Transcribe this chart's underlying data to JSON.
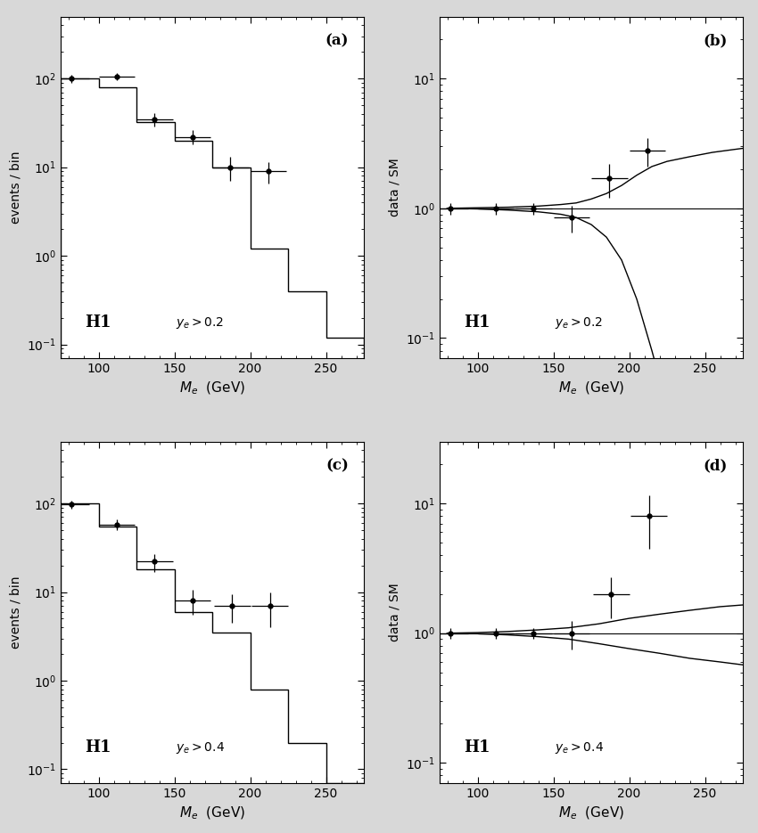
{
  "panel_a": {
    "label": "(a)",
    "condition": "$y_e > 0.2$",
    "hist_edges": [
      75,
      100,
      125,
      150,
      175,
      200,
      225,
      250,
      275
    ],
    "hist_values": [
      100,
      80,
      32,
      20,
      10,
      1.2,
      0.4,
      0.12
    ],
    "data_x": [
      82,
      112,
      137,
      162,
      187,
      212
    ],
    "data_y": [
      100,
      105,
      35,
      22,
      10,
      9
    ],
    "data_xerr": [
      12,
      12,
      12,
      12,
      12,
      12
    ],
    "data_yerr_lo": [
      10,
      10,
      6,
      4,
      3,
      2.5
    ],
    "data_yerr_hi": [
      10,
      10,
      6,
      4,
      3,
      2.5
    ],
    "ylabel": "events / bin",
    "xlabel": "$M_e$  (GeV)",
    "H1_label": "H1",
    "ylim": [
      0.07,
      500
    ],
    "xlim": [
      75,
      275
    ]
  },
  "panel_b": {
    "label": "(b)",
    "condition": "$y_e > 0.2$",
    "data_x": [
      82,
      112,
      137,
      162,
      187,
      212
    ],
    "data_y": [
      1.0,
      1.0,
      1.0,
      0.85,
      1.7,
      2.8
    ],
    "data_xerr": [
      12,
      12,
      12,
      12,
      12,
      12
    ],
    "data_yerr_lo": [
      0.1,
      0.1,
      0.1,
      0.2,
      0.5,
      0.7
    ],
    "data_yerr_hi": [
      0.1,
      0.1,
      0.1,
      0.2,
      0.5,
      0.7
    ],
    "curve_x": [
      80,
      100,
      120,
      140,
      155,
      165,
      175,
      185,
      195,
      205,
      215,
      225,
      240,
      255,
      270,
      275
    ],
    "curve_upper_y": [
      1.0,
      1.01,
      1.02,
      1.04,
      1.07,
      1.1,
      1.18,
      1.3,
      1.5,
      1.8,
      2.1,
      2.3,
      2.5,
      2.7,
      2.85,
      2.9
    ],
    "curve_lower_y": [
      1.0,
      0.99,
      0.97,
      0.94,
      0.9,
      0.85,
      0.75,
      0.6,
      0.4,
      0.2,
      0.08,
      0.03,
      0.006,
      0.001,
      0.0003,
      0.0001
    ],
    "hline_y": 1.0,
    "ylabel": "data / SM",
    "xlabel": "$M_e$  (GeV)",
    "H1_label": "H1",
    "ylim": [
      0.07,
      30
    ],
    "xlim": [
      75,
      275
    ]
  },
  "panel_c": {
    "label": "(c)",
    "condition": "$y_e > 0.4$",
    "hist_edges": [
      75,
      100,
      125,
      150,
      175,
      200,
      225,
      250,
      275
    ],
    "hist_values": [
      100,
      55,
      18,
      6,
      3.5,
      0.8,
      0.2,
      0.07
    ],
    "data_x": [
      82,
      112,
      137,
      162,
      188,
      213
    ],
    "data_y": [
      98,
      58,
      22,
      8,
      7,
      7
    ],
    "data_xerr": [
      12,
      12,
      12,
      12,
      12,
      12
    ],
    "data_yerr_lo": [
      10,
      8,
      5,
      2.5,
      2.5,
      3
    ],
    "data_yerr_hi": [
      10,
      8,
      5,
      2.5,
      2.5,
      3
    ],
    "ylabel": "events / bin",
    "xlabel": "$M_e$  (GeV)",
    "H1_label": "H1",
    "ylim": [
      0.07,
      500
    ],
    "xlim": [
      75,
      275
    ]
  },
  "panel_d": {
    "label": "(d)",
    "condition": "$y_e > 0.4$",
    "data_x": [
      82,
      112,
      137,
      162,
      188,
      213
    ],
    "data_y": [
      1.0,
      1.0,
      1.0,
      1.0,
      2.0,
      8.0
    ],
    "data_xerr": [
      12,
      12,
      12,
      12,
      12,
      12
    ],
    "data_yerr_lo": [
      0.1,
      0.1,
      0.1,
      0.25,
      0.7,
      3.5
    ],
    "data_yerr_hi": [
      0.1,
      0.1,
      0.1,
      0.25,
      0.7,
      3.5
    ],
    "curve_x": [
      80,
      100,
      120,
      140,
      160,
      180,
      200,
      220,
      240,
      260,
      275
    ],
    "curve_upper_y": [
      1.0,
      1.01,
      1.03,
      1.06,
      1.1,
      1.18,
      1.3,
      1.4,
      1.5,
      1.6,
      1.65
    ],
    "curve_lower_y": [
      1.0,
      0.99,
      0.97,
      0.94,
      0.9,
      0.83,
      0.76,
      0.7,
      0.64,
      0.6,
      0.57
    ],
    "hline_y": 1.0,
    "ylabel": "data / SM",
    "xlabel": "$M_e$  (GeV)",
    "H1_label": "H1",
    "ylim": [
      0.07,
      30
    ],
    "xlim": [
      75,
      275
    ]
  },
  "bg_color": "#ffffff",
  "plot_bg_color": "#ffffff",
  "outer_bg_color": "#d8d8d8",
  "line_color": "#000000",
  "marker_color": "#000000"
}
